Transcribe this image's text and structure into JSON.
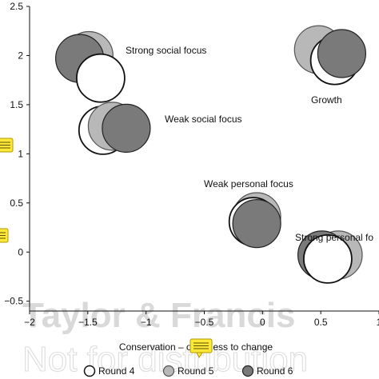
{
  "chart_data": {
    "type": "scatter",
    "title": "",
    "xlabel": "Conservation – openness to change",
    "ylabel": "",
    "xlim": [
      -2,
      1
    ],
    "ylim": [
      -0.6,
      2.5
    ],
    "x_ticks": [
      -2,
      -1.5,
      -1,
      -0.5,
      0,
      0.5,
      1
    ],
    "x_tick_labels": [
      "−2",
      "−1.5",
      "−1",
      "−0.5",
      "0",
      "0.5",
      "1"
    ],
    "y_ticks": [
      -0.5,
      0,
      0.5,
      1,
      1.5,
      2,
      2.5
    ],
    "y_tick_labels": [
      "−0.5",
      "0",
      "0.5",
      "1",
      "1.5",
      "2",
      "2.5"
    ],
    "grid": false,
    "legend_position": "bottom",
    "series": [
      {
        "name": "Round 4",
        "fill": "#ffffff",
        "stroke": "#111111"
      },
      {
        "name": "Round 5",
        "fill": "#b8b8b8",
        "stroke": "#555555"
      },
      {
        "name": "Round 6",
        "fill": "#7a7a7a",
        "stroke": "#222222"
      }
    ],
    "groups": [
      {
        "label": "Strong social focus",
        "points": [
          {
            "series": 1,
            "x": -1.49,
            "y": 2.0
          },
          {
            "series": 2,
            "x": -1.57,
            "y": 1.97
          },
          {
            "series": 0,
            "x": -1.39,
            "y": 1.77
          }
        ]
      },
      {
        "label": "Weak social focus",
        "points": [
          {
            "series": 0,
            "x": -1.37,
            "y": 1.24
          },
          {
            "series": 1,
            "x": -1.29,
            "y": 1.28
          },
          {
            "series": 2,
            "x": -1.17,
            "y": 1.26
          }
        ]
      },
      {
        "label": "Growth",
        "points": [
          {
            "series": 1,
            "x": 0.48,
            "y": 2.06
          },
          {
            "series": 0,
            "x": 0.62,
            "y": 1.95
          },
          {
            "series": 2,
            "x": 0.68,
            "y": 2.02
          }
        ]
      },
      {
        "label": "Weak personal focus",
        "points": [
          {
            "series": 1,
            "x": -0.05,
            "y": 0.36
          },
          {
            "series": 0,
            "x": -0.08,
            "y": 0.31
          },
          {
            "series": 2,
            "x": -0.05,
            "y": 0.29
          }
        ]
      },
      {
        "label": "Strong personal fo",
        "points": [
          {
            "series": 1,
            "x": 0.65,
            "y": -0.03
          },
          {
            "series": 2,
            "x": 0.51,
            "y": -0.03
          },
          {
            "series": 0,
            "x": 0.56,
            "y": -0.07
          }
        ]
      }
    ]
  },
  "watermark": {
    "line1": "Taylor & Francis",
    "line2": "Not for distribution"
  },
  "colors": {
    "axis": "#111111",
    "comment_icon_fill": "#ffe838",
    "comment_icon_stroke": "#b09a00"
  },
  "comment_icons": [
    "comment-note-icon",
    "comment-note-icon",
    "comment-note-icon"
  ]
}
